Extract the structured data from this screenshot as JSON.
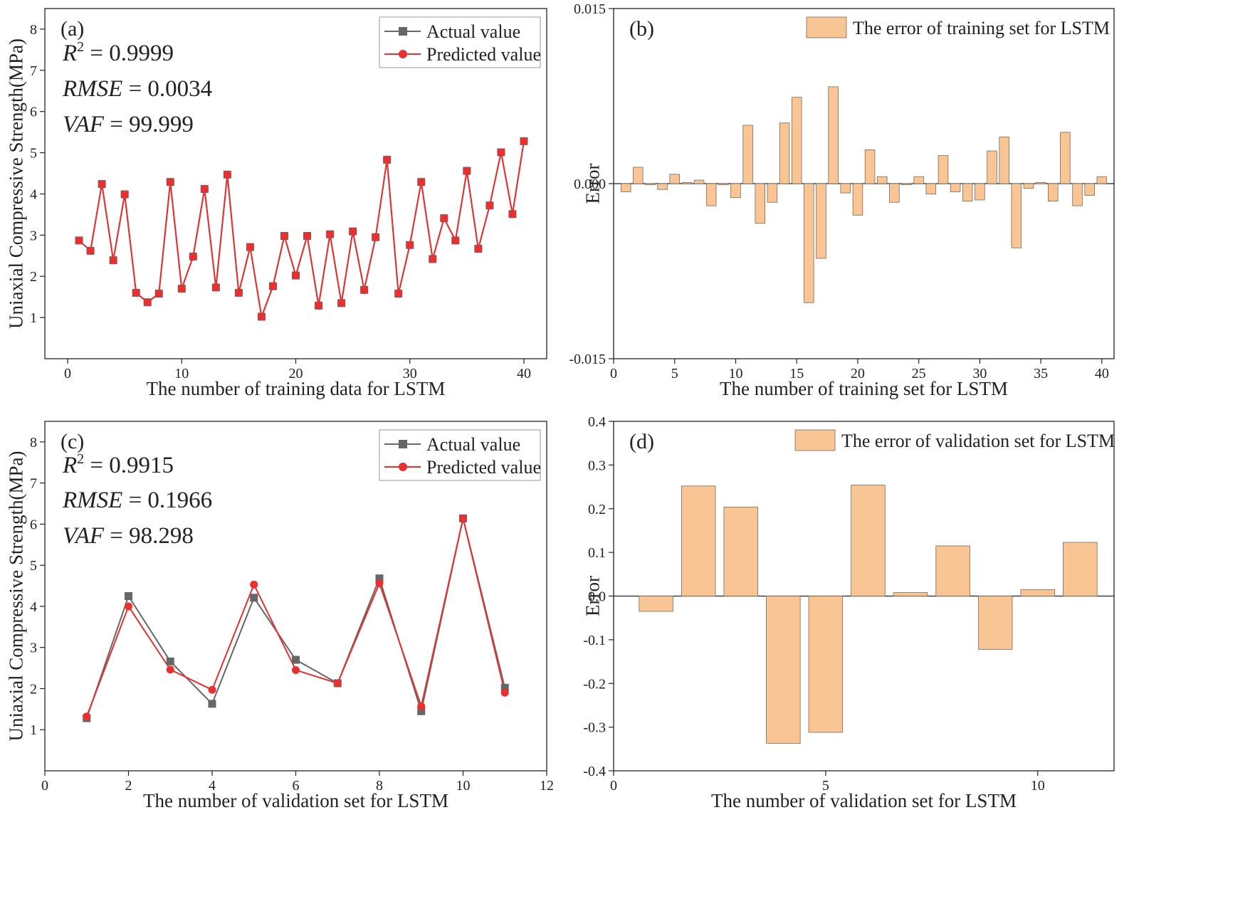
{
  "chart_data": [
    {
      "id": "a",
      "type": "line",
      "panel_label": "(a)",
      "xlabel": "The number of training data for LSTM",
      "ylabel": "Uniaxial Compressive Strength(MPa)",
      "xlim": [
        -2,
        42
      ],
      "ylim": [
        0,
        8.5
      ],
      "xticks": [
        0,
        10,
        20,
        30,
        40
      ],
      "yticks": [
        1,
        2,
        3,
        4,
        5,
        6,
        7,
        8
      ],
      "metrics": [
        {
          "name": "R",
          "sup": "2",
          "eq": "= 0.9999"
        },
        {
          "name": "RMSE",
          "sup": "",
          "eq": "= 0.0034"
        },
        {
          "name": "VAF",
          "sup": "",
          "eq": "= 99.999"
        }
      ],
      "legend": [
        "Actual value",
        "Predicted value"
      ],
      "series": [
        {
          "name": "Actual value",
          "color": "#666666",
          "marker": "square",
          "x": [
            1,
            2,
            3,
            4,
            5,
            6,
            7,
            8,
            9,
            10,
            11,
            12,
            13,
            14,
            15,
            16,
            17,
            18,
            19,
            20,
            21,
            22,
            23,
            24,
            25,
            26,
            27,
            28,
            29,
            30,
            31,
            32,
            33,
            34,
            35,
            36,
            37,
            38,
            39,
            40
          ],
          "values": [
            2.87,
            2.62,
            4.24,
            2.39,
            3.99,
            1.6,
            1.37,
            1.58,
            4.29,
            1.7,
            2.48,
            4.12,
            1.73,
            4.47,
            1.6,
            2.71,
            1.02,
            1.76,
            2.98,
            2.02,
            2.98,
            1.29,
            3.02,
            1.35,
            3.09,
            1.67,
            2.95,
            4.83,
            1.58,
            2.76,
            4.29,
            2.42,
            3.41,
            2.87,
            4.56,
            2.67,
            3.72,
            5.01,
            3.51,
            5.28
          ]
        },
        {
          "name": "Predicted value",
          "color": "#e83030",
          "marker": "circle",
          "x": [
            1,
            2,
            3,
            4,
            5,
            6,
            7,
            8,
            9,
            10,
            11,
            12,
            13,
            14,
            15,
            16,
            17,
            18,
            19,
            20,
            21,
            22,
            23,
            24,
            25,
            26,
            27,
            28,
            29,
            30,
            31,
            32,
            33,
            34,
            35,
            36,
            37,
            38,
            39,
            40
          ],
          "values": [
            2.87,
            2.62,
            4.24,
            2.39,
            3.99,
            1.6,
            1.37,
            1.58,
            4.29,
            1.7,
            2.48,
            4.12,
            1.73,
            4.47,
            1.6,
            2.71,
            1.02,
            1.76,
            2.98,
            2.02,
            2.98,
            1.29,
            3.02,
            1.35,
            3.09,
            1.67,
            2.95,
            4.83,
            1.58,
            2.76,
            4.29,
            2.42,
            3.41,
            2.87,
            4.56,
            2.67,
            3.72,
            5.01,
            3.51,
            5.28
          ]
        }
      ]
    },
    {
      "id": "b",
      "type": "bar",
      "panel_label": "(b)",
      "xlabel": "The number of training set for LSTM",
      "ylabel": "Error",
      "xlim": [
        0,
        41
      ],
      "ylim": [
        -0.015,
        0.015
      ],
      "xticks": [
        0,
        5,
        10,
        15,
        20,
        25,
        30,
        35,
        40
      ],
      "yticks": [
        -0.015,
        0.0,
        0.015
      ],
      "ytick_labels": [
        "-0.015",
        "0.000",
        "0.015"
      ],
      "legend": [
        "The error of training set for LSTM"
      ],
      "bar_color": "#f9c595",
      "categories": [
        1,
        2,
        3,
        4,
        5,
        6,
        7,
        8,
        9,
        10,
        11,
        12,
        13,
        14,
        15,
        16,
        17,
        18,
        19,
        20,
        21,
        22,
        23,
        24,
        25,
        26,
        27,
        28,
        29,
        30,
        31,
        32,
        33,
        34,
        35,
        36,
        37,
        38,
        39,
        40
      ],
      "values": [
        -0.0007,
        0.0014,
        -0.0001,
        -0.0005,
        0.0008,
        0.0001,
        0.0003,
        -0.0019,
        -0.0001,
        -0.0012,
        0.005,
        -0.0034,
        -0.0016,
        0.0052,
        0.0074,
        -0.0102,
        -0.0064,
        0.0083,
        -0.0008,
        -0.0027,
        0.0029,
        0.0006,
        -0.0016,
        -0.0001,
        0.0006,
        -0.0009,
        0.0024,
        -0.0007,
        -0.0015,
        -0.0014,
        0.0028,
        0.004,
        -0.0055,
        -0.0004,
        0.0001,
        -0.0015,
        0.0044,
        -0.0019,
        -0.001,
        0.0006
      ]
    },
    {
      "id": "c",
      "type": "line",
      "panel_label": "(c)",
      "xlabel": "The number of validation set for LSTM",
      "ylabel": "Uniaxial Compressive Strength(MPa)",
      "xlim": [
        0,
        12
      ],
      "ylim": [
        0,
        8.5
      ],
      "xticks": [
        0,
        2,
        4,
        6,
        8,
        10,
        12
      ],
      "yticks": [
        1,
        2,
        3,
        4,
        5,
        6,
        7,
        8
      ],
      "metrics": [
        {
          "name": "R",
          "sup": "2",
          "eq": "= 0.9915"
        },
        {
          "name": "RMSE",
          "sup": "",
          "eq": "= 0.1966"
        },
        {
          "name": "VAF",
          "sup": "",
          "eq": "= 98.298"
        }
      ],
      "legend": [
        "Actual value",
        "Predicted value"
      ],
      "series": [
        {
          "name": "Actual value",
          "color": "#666666",
          "marker": "square",
          "x": [
            1,
            2,
            3,
            4,
            5,
            6,
            7,
            8,
            9,
            10,
            11
          ],
          "values": [
            1.28,
            4.25,
            2.66,
            1.63,
            4.21,
            2.7,
            2.13,
            4.68,
            1.45,
            6.14,
            2.02
          ]
        },
        {
          "name": "Predicted value",
          "color": "#e83030",
          "marker": "circle",
          "x": [
            1,
            2,
            3,
            4,
            5,
            6,
            7,
            8,
            9,
            10,
            11
          ],
          "values": [
            1.32,
            4.0,
            2.46,
            1.97,
            4.53,
            2.45,
            2.13,
            4.56,
            1.57,
            6.14,
            1.9
          ]
        }
      ]
    },
    {
      "id": "d",
      "type": "bar",
      "panel_label": "(d)",
      "xlabel": "The number of validation set for LSTM",
      "ylabel": "Error",
      "xlim": [
        0,
        11.8
      ],
      "ylim": [
        -0.4,
        0.4
      ],
      "xticks": [
        0,
        5,
        10
      ],
      "yticks": [
        -0.4,
        -0.3,
        -0.2,
        -0.1,
        0.0,
        0.1,
        0.2,
        0.3,
        0.4
      ],
      "ytick_labels": [
        "-0.4",
        "-0.3",
        "-0.2",
        "-0.1",
        "0.0",
        "0.1",
        "0.2",
        "0.3",
        "0.4"
      ],
      "legend": [
        "The error of validation set for LSTM"
      ],
      "bar_color": "#f9c595",
      "categories": [
        1,
        2,
        3,
        4,
        5,
        6,
        7,
        8,
        9,
        10,
        11
      ],
      "values": [
        -0.035,
        0.252,
        0.204,
        -0.337,
        -0.312,
        0.254,
        0.008,
        0.115,
        -0.122,
        0.015,
        0.123
      ]
    }
  ]
}
